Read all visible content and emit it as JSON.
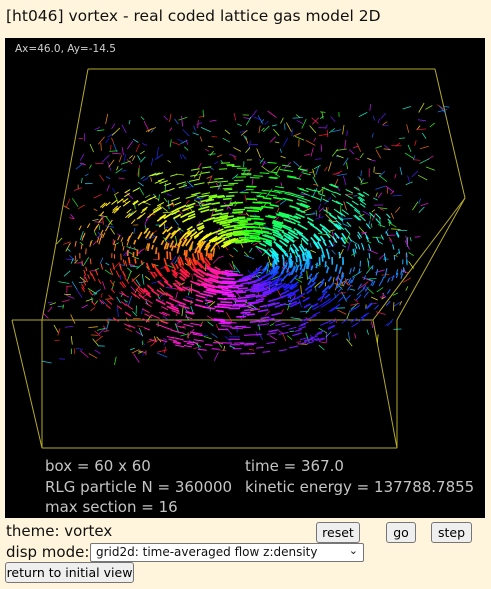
{
  "title": "[ht046] vortex - real coded lattice gas model 2D",
  "view": {
    "angle_readout": "Ax=46.0, Ay=-14.5",
    "stats": {
      "box": "box = 60 x 60",
      "time": "time = 367.0",
      "particles": "RLG particle N = 360000",
      "energy": "kinetic energy = 137788.7855",
      "section": "max section = 16"
    },
    "box_color": "#b5a92a",
    "background": "#000000"
  },
  "controls": {
    "theme_label": "theme: vortex",
    "reset_label": "reset",
    "go_label": "go",
    "step_label": "step",
    "disp_mode_label": "disp mode:",
    "disp_mode_value": "grid2d: time-averaged flow z:density",
    "return_label": "return to initial view"
  }
}
